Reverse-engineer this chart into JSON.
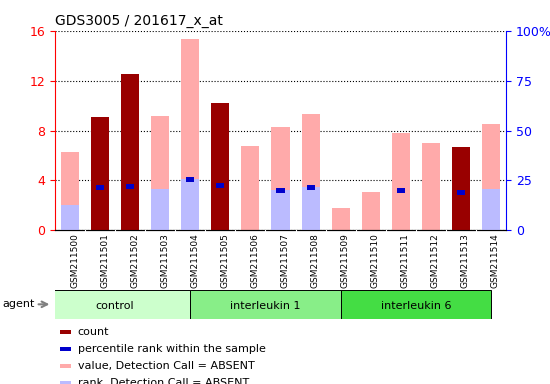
{
  "title": "GDS3005 / 201617_x_at",
  "samples": [
    "GSM211500",
    "GSM211501",
    "GSM211502",
    "GSM211503",
    "GSM211504",
    "GSM211505",
    "GSM211506",
    "GSM211507",
    "GSM211508",
    "GSM211509",
    "GSM211510",
    "GSM211511",
    "GSM211512",
    "GSM211513",
    "GSM211514"
  ],
  "groups": [
    {
      "label": "control",
      "start": 0,
      "end": 4,
      "color": "#ccffcc"
    },
    {
      "label": "interleukin 1",
      "start": 5,
      "end": 9,
      "color": "#88ee88"
    },
    {
      "label": "interleukin 6",
      "start": 10,
      "end": 14,
      "color": "#44dd44"
    }
  ],
  "count": [
    0,
    9.1,
    12.5,
    0,
    0,
    10.2,
    0,
    0,
    0,
    0,
    0,
    0,
    0,
    6.7,
    0
  ],
  "percentile_rank": [
    0,
    3.4,
    3.5,
    0,
    4.1,
    3.6,
    0,
    3.2,
    3.4,
    0,
    0,
    3.2,
    0,
    3.0,
    0
  ],
  "value_absent": [
    6.3,
    0,
    0,
    9.2,
    15.3,
    0,
    6.8,
    8.3,
    9.3,
    1.8,
    3.1,
    7.8,
    7.0,
    0,
    8.5
  ],
  "rank_absent": [
    2.0,
    0,
    0,
    3.3,
    4.1,
    0,
    0,
    3.2,
    3.5,
    0,
    0,
    0,
    0,
    0,
    3.3
  ],
  "ylim_left": [
    0,
    16
  ],
  "ylim_right": [
    0,
    100
  ],
  "yticks_left": [
    0,
    4,
    8,
    12,
    16
  ],
  "yticks_right": [
    0,
    25,
    50,
    75,
    100
  ],
  "ytick_labels_right": [
    "0",
    "25",
    "50",
    "75",
    "100%"
  ],
  "color_count": "#990000",
  "color_percentile": "#0000cc",
  "color_value_absent": "#ffaaaa",
  "color_rank_absent": "#bbbbff",
  "bar_width": 0.6,
  "legend_items": [
    {
      "color": "#990000",
      "label": "count"
    },
    {
      "color": "#0000cc",
      "label": "percentile rank within the sample"
    },
    {
      "color": "#ffaaaa",
      "label": "value, Detection Call = ABSENT"
    },
    {
      "color": "#bbbbff",
      "label": "rank, Detection Call = ABSENT"
    }
  ],
  "xtick_bg_color": "#cccccc",
  "plot_bg_color": "#ffffff",
  "agent_label": "agent"
}
